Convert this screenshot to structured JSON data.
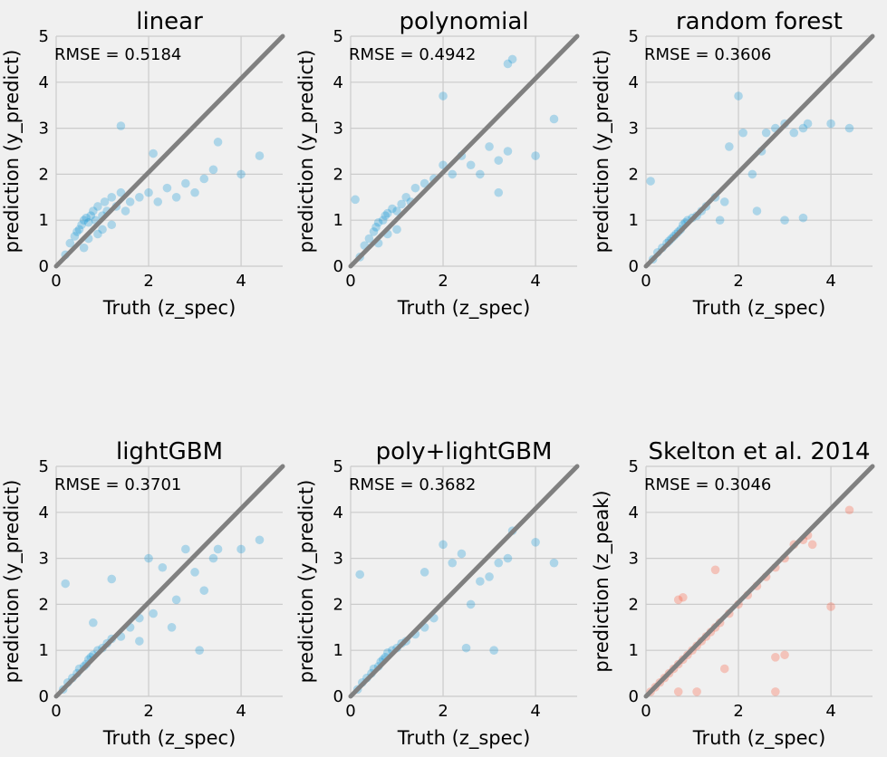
{
  "chart_data": [
    {
      "type": "scatter",
      "title": "linear",
      "xlabel": "Truth (z_spec)",
      "ylabel": "prediction (y_predict)",
      "annotation": "RMSE = 0.5184",
      "xlim": [
        0,
        4.9
      ],
      "ylim": [
        0,
        5
      ],
      "xticks": [
        "0",
        "2",
        "4"
      ],
      "yticks": [
        "0",
        "1",
        "2",
        "3",
        "4",
        "5"
      ],
      "grid": true,
      "point_color": "#008fd5",
      "reference_line": {
        "from": [
          0,
          0
        ],
        "to": [
          4.9,
          5
        ],
        "color": "#808080"
      },
      "points": [
        [
          0.2,
          0.25
        ],
        [
          0.3,
          0.5
        ],
        [
          0.4,
          0.65
        ],
        [
          0.45,
          0.75
        ],
        [
          0.5,
          0.8
        ],
        [
          0.55,
          0.9
        ],
        [
          0.6,
          1.0
        ],
        [
          0.65,
          1.05
        ],
        [
          0.7,
          0.95
        ],
        [
          0.75,
          1.1
        ],
        [
          0.8,
          1.2
        ],
        [
          0.85,
          1.0
        ],
        [
          0.9,
          1.3
        ],
        [
          1.0,
          1.1
        ],
        [
          1.05,
          1.4
        ],
        [
          1.1,
          1.2
        ],
        [
          1.2,
          1.5
        ],
        [
          1.3,
          1.3
        ],
        [
          1.4,
          1.6
        ],
        [
          1.5,
          1.2
        ],
        [
          1.6,
          1.4
        ],
        [
          1.8,
          1.5
        ],
        [
          2.0,
          1.6
        ],
        [
          2.2,
          1.4
        ],
        [
          2.4,
          1.7
        ],
        [
          2.6,
          1.5
        ],
        [
          2.8,
          1.8
        ],
        [
          3.0,
          1.6
        ],
        [
          3.2,
          1.9
        ],
        [
          3.4,
          2.1
        ],
        [
          3.5,
          2.7
        ],
        [
          4.0,
          2.0
        ],
        [
          4.4,
          2.4
        ],
        [
          1.4,
          3.05
        ],
        [
          2.1,
          2.45
        ],
        [
          0.6,
          0.4
        ],
        [
          0.7,
          0.6
        ],
        [
          0.9,
          0.7
        ],
        [
          1.0,
          0.8
        ],
        [
          1.2,
          0.9
        ]
      ]
    },
    {
      "type": "scatter",
      "title": "polynomial",
      "xlabel": "Truth (z_spec)",
      "ylabel": "prediction (y_predict)",
      "annotation": "RMSE = 0.4942",
      "xlim": [
        0,
        4.9
      ],
      "ylim": [
        0,
        5
      ],
      "xticks": [
        "0",
        "2",
        "4"
      ],
      "yticks": [
        "0",
        "1",
        "2",
        "3",
        "4",
        "5"
      ],
      "grid": true,
      "point_color": "#008fd5",
      "reference_line": {
        "from": [
          0,
          0
        ],
        "to": [
          4.9,
          5
        ],
        "color": "#808080"
      },
      "points": [
        [
          0.2,
          0.2
        ],
        [
          0.3,
          0.45
        ],
        [
          0.4,
          0.6
        ],
        [
          0.5,
          0.75
        ],
        [
          0.55,
          0.85
        ],
        [
          0.6,
          0.95
        ],
        [
          0.7,
          1.0
        ],
        [
          0.75,
          1.1
        ],
        [
          0.8,
          1.15
        ],
        [
          0.9,
          1.25
        ],
        [
          1.0,
          1.2
        ],
        [
          1.1,
          1.35
        ],
        [
          1.2,
          1.5
        ],
        [
          1.3,
          1.4
        ],
        [
          1.4,
          1.7
        ],
        [
          1.6,
          1.8
        ],
        [
          1.8,
          1.9
        ],
        [
          2.0,
          2.2
        ],
        [
          2.2,
          2.0
        ],
        [
          2.4,
          2.4
        ],
        [
          2.6,
          2.2
        ],
        [
          2.8,
          2.0
        ],
        [
          3.0,
          2.6
        ],
        [
          3.2,
          2.3
        ],
        [
          3.4,
          2.5
        ],
        [
          3.5,
          4.5
        ],
        [
          3.4,
          4.4
        ],
        [
          2.0,
          3.7
        ],
        [
          4.0,
          2.4
        ],
        [
          4.4,
          3.2
        ],
        [
          3.2,
          1.6
        ],
        [
          0.1,
          1.45
        ],
        [
          0.6,
          0.5
        ],
        [
          0.8,
          0.7
        ],
        [
          1.0,
          0.8
        ]
      ]
    },
    {
      "type": "scatter",
      "title": "random forest",
      "xlabel": "Truth (z_spec)",
      "ylabel": "prediction (y_predict)",
      "annotation": "RMSE = 0.3606",
      "xlim": [
        0,
        4.9
      ],
      "ylim": [
        0,
        5
      ],
      "xticks": [
        "0",
        "2",
        "4"
      ],
      "yticks": [
        "0",
        "1",
        "2",
        "3",
        "4",
        "5"
      ],
      "grid": true,
      "point_color": "#008fd5",
      "reference_line": {
        "from": [
          0,
          0
        ],
        "to": [
          4.9,
          5
        ],
        "color": "#808080"
      },
      "points": [
        [
          0.15,
          0.15
        ],
        [
          0.25,
          0.3
        ],
        [
          0.35,
          0.4
        ],
        [
          0.45,
          0.5
        ],
        [
          0.5,
          0.55
        ],
        [
          0.55,
          0.6
        ],
        [
          0.6,
          0.65
        ],
        [
          0.65,
          0.7
        ],
        [
          0.7,
          0.75
        ],
        [
          0.75,
          0.8
        ],
        [
          0.8,
          0.9
        ],
        [
          0.85,
          0.95
        ],
        [
          0.9,
          1.0
        ],
        [
          1.0,
          1.05
        ],
        [
          1.1,
          1.1
        ],
        [
          1.2,
          1.2
        ],
        [
          1.3,
          1.3
        ],
        [
          1.5,
          1.5
        ],
        [
          1.7,
          1.4
        ],
        [
          1.8,
          2.6
        ],
        [
          2.0,
          3.7
        ],
        [
          2.1,
          2.9
        ],
        [
          2.3,
          2.0
        ],
        [
          2.5,
          2.5
        ],
        [
          2.6,
          2.9
        ],
        [
          2.8,
          3.0
        ],
        [
          3.0,
          3.1
        ],
        [
          3.2,
          2.9
        ],
        [
          3.4,
          3.0
        ],
        [
          3.5,
          3.1
        ],
        [
          4.0,
          3.1
        ],
        [
          4.4,
          3.0
        ],
        [
          3.0,
          1.0
        ],
        [
          3.4,
          1.05
        ],
        [
          2.4,
          1.2
        ],
        [
          0.1,
          1.85
        ],
        [
          1.6,
          1.0
        ]
      ]
    },
    {
      "type": "scatter",
      "title": "lightGBM",
      "xlabel": "Truth (z_spec)",
      "ylabel": "prediction (y_predict)",
      "annotation": "RMSE = 0.3701",
      "xlim": [
        0,
        4.9
      ],
      "ylim": [
        0,
        5
      ],
      "xticks": [
        "0",
        "2",
        "4"
      ],
      "yticks": [
        "0",
        "1",
        "2",
        "3",
        "4",
        "5"
      ],
      "grid": true,
      "point_color": "#008fd5",
      "reference_line": {
        "from": [
          0,
          0
        ],
        "to": [
          4.9,
          5
        ],
        "color": "#808080"
      },
      "points": [
        [
          0.15,
          0.15
        ],
        [
          0.25,
          0.3
        ],
        [
          0.35,
          0.4
        ],
        [
          0.45,
          0.5
        ],
        [
          0.5,
          0.6
        ],
        [
          0.6,
          0.65
        ],
        [
          0.65,
          0.7
        ],
        [
          0.7,
          0.8
        ],
        [
          0.75,
          0.85
        ],
        [
          0.8,
          0.9
        ],
        [
          0.9,
          1.0
        ],
        [
          1.0,
          1.05
        ],
        [
          1.1,
          1.15
        ],
        [
          1.2,
          1.25
        ],
        [
          1.4,
          1.3
        ],
        [
          1.6,
          1.5
        ],
        [
          1.8,
          1.7
        ],
        [
          2.0,
          3.0
        ],
        [
          2.1,
          1.8
        ],
        [
          2.3,
          2.8
        ],
        [
          2.5,
          1.5
        ],
        [
          2.6,
          2.1
        ],
        [
          2.8,
          3.2
        ],
        [
          3.0,
          2.7
        ],
        [
          3.2,
          2.3
        ],
        [
          3.4,
          3.0
        ],
        [
          3.5,
          3.2
        ],
        [
          4.0,
          3.2
        ],
        [
          4.4,
          3.4
        ],
        [
          3.1,
          1.0
        ],
        [
          1.8,
          1.2
        ],
        [
          0.2,
          2.45
        ],
        [
          1.2,
          2.55
        ],
        [
          0.8,
          1.6
        ]
      ]
    },
    {
      "type": "scatter",
      "title": "poly+lightGBM",
      "xlabel": "Truth (z_spec)",
      "ylabel": "prediction (y_predict)",
      "annotation": "RMSE = 0.3682",
      "xlim": [
        0,
        4.9
      ],
      "ylim": [
        0,
        5
      ],
      "xticks": [
        "0",
        "2",
        "4"
      ],
      "yticks": [
        "0",
        "1",
        "2",
        "3",
        "4",
        "5"
      ],
      "grid": true,
      "point_color": "#008fd5",
      "reference_line": {
        "from": [
          0,
          0
        ],
        "to": [
          4.9,
          5
        ],
        "color": "#808080"
      },
      "points": [
        [
          0.15,
          0.15
        ],
        [
          0.25,
          0.3
        ],
        [
          0.35,
          0.4
        ],
        [
          0.45,
          0.5
        ],
        [
          0.5,
          0.6
        ],
        [
          0.6,
          0.65
        ],
        [
          0.65,
          0.75
        ],
        [
          0.7,
          0.8
        ],
        [
          0.75,
          0.85
        ],
        [
          0.8,
          0.95
        ],
        [
          0.9,
          1.0
        ],
        [
          1.0,
          1.05
        ],
        [
          1.1,
          1.15
        ],
        [
          1.2,
          1.2
        ],
        [
          1.4,
          1.35
        ],
        [
          1.6,
          1.5
        ],
        [
          1.8,
          1.7
        ],
        [
          2.0,
          3.3
        ],
        [
          2.2,
          2.9
        ],
        [
          2.4,
          3.1
        ],
        [
          2.6,
          2.0
        ],
        [
          2.8,
          2.5
        ],
        [
          3.0,
          2.6
        ],
        [
          3.2,
          2.9
        ],
        [
          3.4,
          3.0
        ],
        [
          3.5,
          3.6
        ],
        [
          4.0,
          3.35
        ],
        [
          4.4,
          2.9
        ],
        [
          3.1,
          1.0
        ],
        [
          2.5,
          1.05
        ],
        [
          0.2,
          2.65
        ],
        [
          1.6,
          2.7
        ]
      ]
    },
    {
      "type": "scatter",
      "title": "Skelton et al. 2014",
      "xlabel": "Truth (z_spec)",
      "ylabel": "prediction (z_peak)",
      "annotation": "RMSE = 0.3046",
      "xlim": [
        0,
        4.9
      ],
      "ylim": [
        0,
        5
      ],
      "xticks": [
        "0",
        "2",
        "4"
      ],
      "yticks": [
        "0",
        "1",
        "2",
        "3",
        "4",
        "5"
      ],
      "grid": true,
      "point_color": "#fc4f30",
      "reference_line": {
        "from": [
          0,
          0
        ],
        "to": [
          4.9,
          5
        ],
        "color": "#808080"
      },
      "points": [
        [
          0.1,
          0.1
        ],
        [
          0.2,
          0.2
        ],
        [
          0.3,
          0.3
        ],
        [
          0.4,
          0.4
        ],
        [
          0.5,
          0.5
        ],
        [
          0.6,
          0.6
        ],
        [
          0.7,
          0.7
        ],
        [
          0.8,
          0.8
        ],
        [
          0.9,
          0.9
        ],
        [
          1.0,
          1.0
        ],
        [
          1.1,
          1.1
        ],
        [
          1.2,
          1.2
        ],
        [
          1.3,
          1.3
        ],
        [
          1.4,
          1.4
        ],
        [
          1.5,
          1.5
        ],
        [
          1.6,
          1.6
        ],
        [
          1.8,
          1.8
        ],
        [
          2.0,
          2.0
        ],
        [
          2.2,
          2.2
        ],
        [
          2.4,
          2.4
        ],
        [
          2.6,
          2.6
        ],
        [
          2.8,
          2.8
        ],
        [
          3.0,
          3.0
        ],
        [
          3.2,
          3.3
        ],
        [
          3.4,
          3.4
        ],
        [
          3.5,
          3.5
        ],
        [
          3.6,
          3.3
        ],
        [
          4.4,
          4.05
        ],
        [
          0.7,
          2.1
        ],
        [
          0.8,
          2.15
        ],
        [
          1.5,
          2.75
        ],
        [
          4.0,
          1.95
        ],
        [
          2.8,
          0.85
        ],
        [
          3.0,
          0.9
        ],
        [
          1.7,
          0.6
        ],
        [
          1.1,
          0.1
        ],
        [
          0.7,
          0.1
        ],
        [
          2.8,
          0.1
        ]
      ]
    }
  ]
}
